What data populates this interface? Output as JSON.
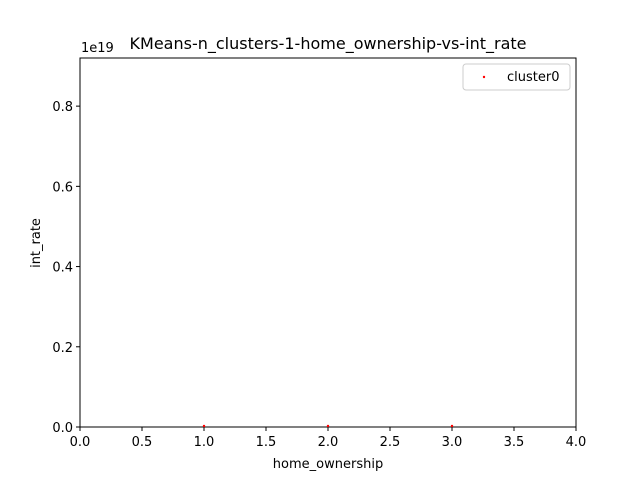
{
  "chart_data": {
    "type": "scatter",
    "title": "KMeans-n_clusters-1-home_ownership-vs-int_rate",
    "xlabel": "home_ownership",
    "ylabel": "int_rate",
    "offset_text": "1e19",
    "xlim": [
      0,
      4
    ],
    "ylim": [
      0,
      9.2e+18
    ],
    "xticks": [
      0,
      0.5,
      1,
      1.5,
      2,
      2.5,
      3,
      3.5,
      4
    ],
    "xtick_labels": [
      "0.0",
      "0.5",
      "1.0",
      "1.5",
      "2.0",
      "2.5",
      "3.0",
      "3.5",
      "4.0"
    ],
    "yticks": [
      0,
      2e+18,
      4e+18,
      6e+18,
      8e+18
    ],
    "ytick_labels": [
      "0.0",
      "0.2",
      "0.4",
      "0.6",
      "0.8"
    ],
    "grid": false,
    "legend_position": "top-right",
    "series": [
      {
        "name": "cluster0",
        "color": "#ff0000",
        "points": [
          {
            "x": 1,
            "y": 0
          },
          {
            "x": 2,
            "y": 0
          },
          {
            "x": 3,
            "y": 0
          }
        ]
      }
    ]
  }
}
